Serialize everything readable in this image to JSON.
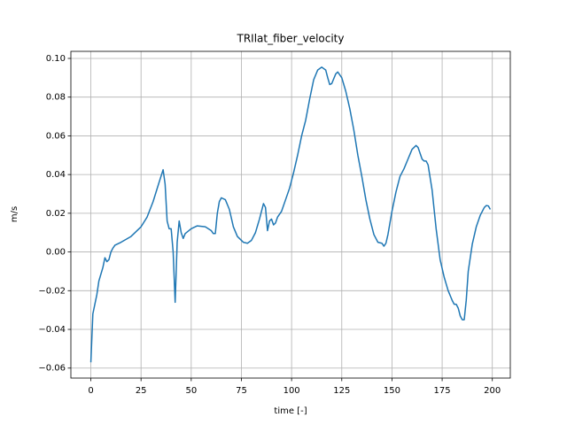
{
  "chart_data": {
    "type": "line",
    "title": "TRIlat_fiber_velocity",
    "xlabel": "time [-]",
    "ylabel": "m/s",
    "x": [
      0,
      1,
      3,
      4,
      6,
      7,
      8,
      9,
      10,
      11,
      12,
      15,
      20,
      25,
      28,
      31,
      34,
      36,
      37,
      38,
      39,
      40,
      41,
      42,
      43,
      44,
      45,
      46,
      47,
      50,
      53,
      57,
      60,
      61,
      62,
      63,
      64,
      65,
      67,
      69,
      71,
      73,
      76,
      78,
      80,
      82,
      84,
      86,
      87,
      88,
      89,
      90,
      91,
      92,
      93,
      95,
      97,
      99,
      101,
      103,
      105,
      107,
      109,
      111,
      113,
      115,
      117,
      118,
      119,
      120,
      122,
      123,
      125,
      127,
      129,
      131,
      133,
      135,
      137,
      139,
      141,
      143,
      145,
      146,
      147,
      148,
      150,
      152,
      154,
      156,
      158,
      160,
      162,
      163,
      165,
      166,
      167,
      168,
      170,
      172,
      174,
      176,
      178,
      180,
      181,
      182,
      183,
      184,
      185,
      186,
      187,
      188,
      190,
      192,
      194,
      196,
      197,
      198,
      199
    ],
    "series": [
      {
        "color": "#1f77b4",
        "values": [
          -0.057,
          -0.032,
          -0.022,
          -0.015,
          -0.008,
          -0.003,
          -0.005,
          -0.004,
          0.0,
          0.002,
          0.0035,
          0.005,
          0.008,
          0.013,
          0.018,
          0.026,
          0.036,
          0.0425,
          0.035,
          0.016,
          0.012,
          0.012,
          0.0,
          -0.026,
          0.005,
          0.016,
          0.01,
          0.007,
          0.0095,
          0.012,
          0.0135,
          0.013,
          0.011,
          0.0095,
          0.0095,
          0.02,
          0.026,
          0.028,
          0.027,
          0.022,
          0.013,
          0.008,
          0.005,
          0.0045,
          0.006,
          0.01,
          0.017,
          0.025,
          0.023,
          0.011,
          0.016,
          0.017,
          0.014,
          0.015,
          0.018,
          0.021,
          0.027,
          0.033,
          0.041,
          0.05,
          0.06,
          0.068,
          0.079,
          0.089,
          0.094,
          0.0955,
          0.094,
          0.09,
          0.0865,
          0.087,
          0.092,
          0.093,
          0.09,
          0.083,
          0.074,
          0.063,
          0.05,
          0.039,
          0.027,
          0.017,
          0.009,
          0.005,
          0.0045,
          0.003,
          0.0045,
          0.009,
          0.021,
          0.031,
          0.039,
          0.043,
          0.048,
          0.053,
          0.055,
          0.054,
          0.048,
          0.047,
          0.047,
          0.045,
          0.032,
          0.012,
          -0.004,
          -0.013,
          -0.02,
          -0.025,
          -0.027,
          -0.027,
          -0.029,
          -0.033,
          -0.035,
          -0.035,
          -0.025,
          -0.01,
          0.004,
          0.013,
          0.019,
          0.023,
          0.024,
          0.0238,
          0.022
        ]
      }
    ],
    "xlim": [
      -9.95,
      208.95
    ],
    "xticks": [
      0,
      25,
      50,
      75,
      100,
      125,
      150,
      175,
      200
    ],
    "ylim": [
      -0.06515,
      0.10365
    ],
    "yticks": [
      {
        "value": -0.06,
        "label": "−0.06"
      },
      {
        "value": -0.04,
        "label": "−0.04"
      },
      {
        "value": -0.02,
        "label": "−0.02"
      },
      {
        "value": 0,
        "label": "0.00"
      },
      0.02,
      0.04,
      0.06,
      0.08,
      {
        "value": 0.1,
        "label": "0.10"
      }
    ],
    "grid": true
  }
}
